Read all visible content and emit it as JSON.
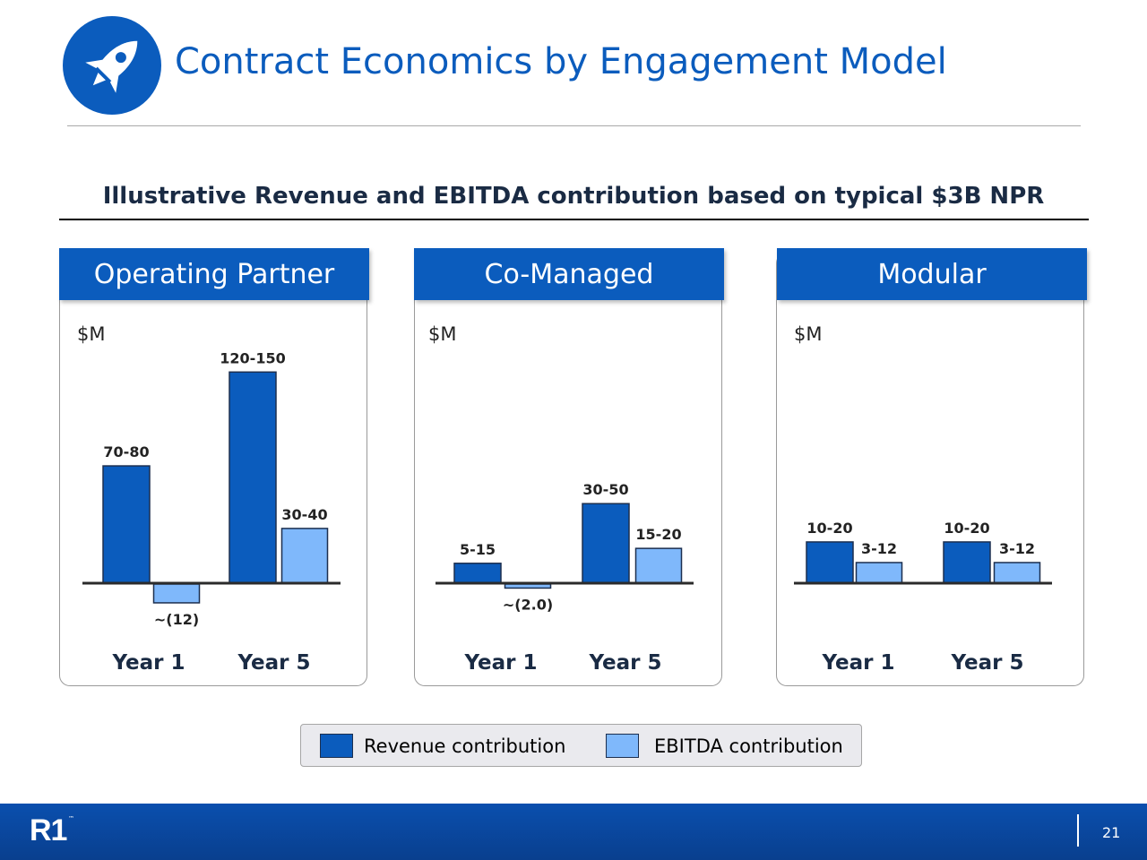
{
  "page": {
    "title": "Contract Economics by Engagement Model",
    "subtitle": "Illustrative Revenue and EBITDA contribution based on typical $3B NPR",
    "page_number": "21",
    "footer_logo": "R1",
    "footer_trademark": "™",
    "header_icon": "rocket-icon"
  },
  "colors": {
    "revenue": "#0b5cbd",
    "ebitda": "#7fb8fb",
    "brand_blue": "#0b5cbd"
  },
  "legend": {
    "items": [
      {
        "label": "Revenue contribution",
        "color": "#0b5cbd"
      },
      {
        "label": "EBITDA contribution",
        "color": "#7fb8fb"
      }
    ]
  },
  "chart_data": [
    {
      "type": "bar",
      "title": "Operating Partner",
      "unit_label": "$M",
      "categories": [
        "Year 1",
        "Year  5"
      ],
      "series": [
        {
          "name": "Revenue contribution",
          "values": [
            75,
            135
          ],
          "labels": [
            "70-80",
            "120-150"
          ]
        },
        {
          "name": "EBITDA contribution",
          "values": [
            -12,
            35
          ],
          "labels": [
            "~(12)",
            "30-40"
          ]
        }
      ]
    },
    {
      "type": "bar",
      "title": "Co-Managed",
      "unit_label": "$M",
      "categories": [
        "Year 1",
        "Year  5"
      ],
      "series": [
        {
          "name": "Revenue contribution",
          "values": [
            10,
            40
          ],
          "labels": [
            "5-15",
            "30-50"
          ]
        },
        {
          "name": "EBITDA contribution",
          "values": [
            -2,
            17.5
          ],
          "labels": [
            "~(2.0)",
            "15-20"
          ]
        }
      ]
    },
    {
      "type": "bar",
      "title": "Modular",
      "unit_label": "$M",
      "categories": [
        "Year 1",
        "Year  5"
      ],
      "series": [
        {
          "name": "Revenue contribution",
          "values": [
            15,
            15
          ],
          "labels": [
            "10-20",
            "10-20"
          ]
        },
        {
          "name": "EBITDA contribution",
          "values": [
            7.5,
            7.5
          ],
          "labels": [
            "3-12",
            "3-12"
          ]
        }
      ]
    }
  ]
}
